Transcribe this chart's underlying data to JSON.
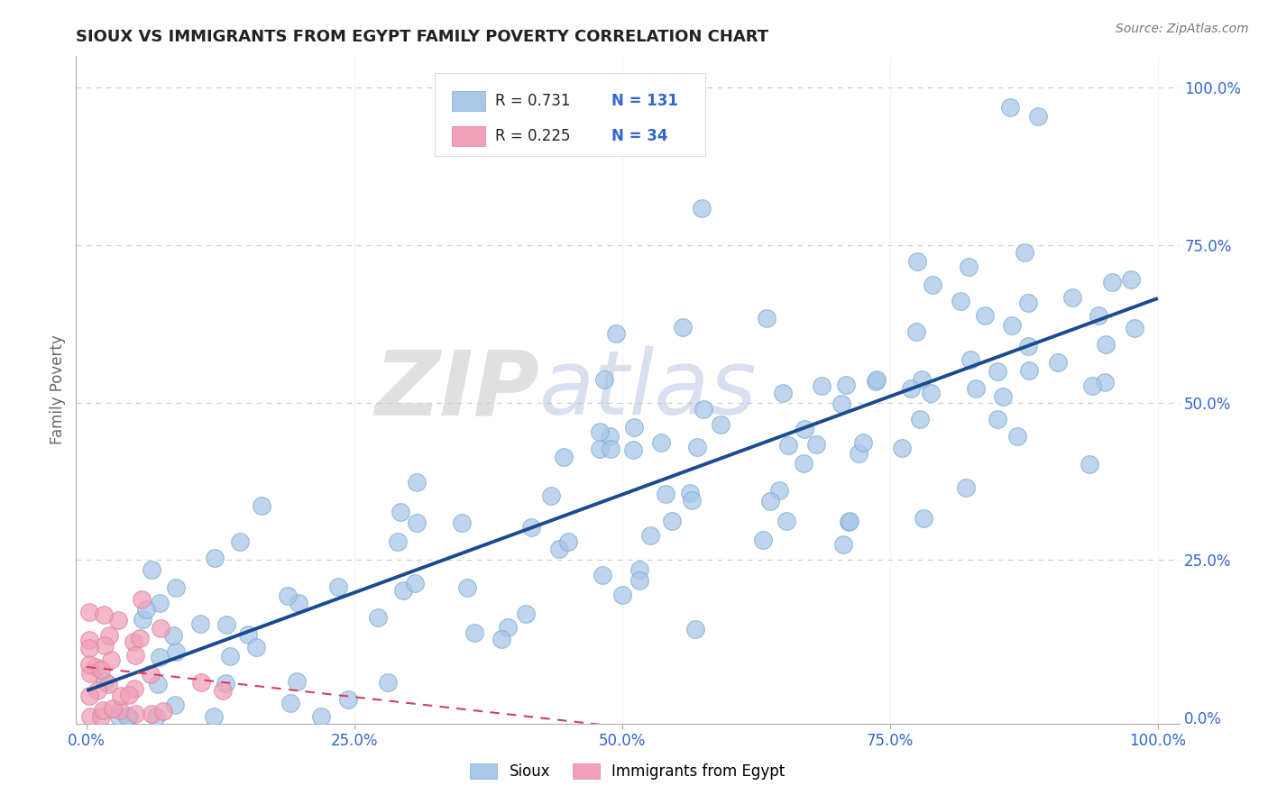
{
  "title": "SIOUX VS IMMIGRANTS FROM EGYPT FAMILY POVERTY CORRELATION CHART",
  "source_text": "Source: ZipAtlas.com",
  "ylabel": "Family Poverty",
  "legend_r1": "R = 0.731",
  "legend_n1": "N = 131",
  "legend_r2": "R = 0.225",
  "legend_n2": "N = 34",
  "sioux_color": "#A8C8E8",
  "egypt_color": "#F0A0B8",
  "sioux_edge_color": "#7AAAD0",
  "egypt_edge_color": "#E080A0",
  "line_sioux_color": "#1A4A90",
  "line_egypt_color": "#D04060",
  "axis_label_color": "#3366CC",
  "title_color": "#222222",
  "grid_color": "#CCCCCC",
  "background_color": "#FFFFFF",
  "ytick_labels": [
    "0.0%",
    "25.0%",
    "50.0%",
    "75.0%",
    "100.0%"
  ],
  "ytick_vals": [
    0.0,
    0.25,
    0.5,
    0.75,
    1.0
  ],
  "xtick_labels": [
    "0.0%",
    "25.0%",
    "50.0%",
    "75.0%",
    "100.0%"
  ],
  "xtick_vals": [
    0.0,
    0.25,
    0.5,
    0.75,
    1.0
  ]
}
